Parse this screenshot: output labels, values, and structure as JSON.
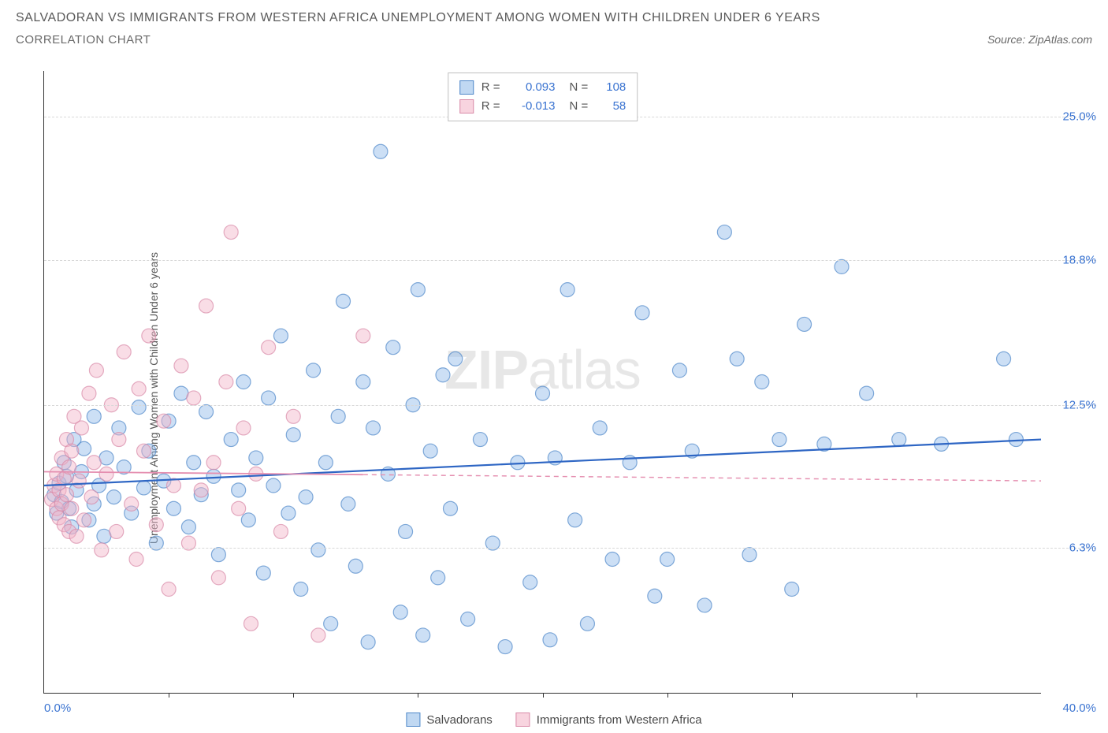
{
  "title": "SALVADORAN VS IMMIGRANTS FROM WESTERN AFRICA UNEMPLOYMENT AMONG WOMEN WITH CHILDREN UNDER 6 YEARS",
  "subtitle": "CORRELATION CHART",
  "source": "Source: ZipAtlas.com",
  "y_axis_label": "Unemployment Among Women with Children Under 6 years",
  "watermark_bold": "ZIP",
  "watermark_light": "atlas",
  "chart": {
    "type": "scatter",
    "xlim": [
      0,
      40
    ],
    "ylim": [
      0,
      27
    ],
    "x_min_label": "0.0%",
    "x_max_label": "40.0%",
    "x_tick_positions": [
      5,
      10,
      15,
      20,
      25,
      30,
      35
    ],
    "y_gridlines": [
      {
        "value": 6.3,
        "label": "6.3%"
      },
      {
        "value": 12.5,
        "label": "12.5%"
      },
      {
        "value": 18.8,
        "label": "18.8%"
      },
      {
        "value": 25.0,
        "label": "25.0%"
      }
    ],
    "background_color": "#ffffff",
    "grid_color": "#d8d8d8",
    "axis_color": "#333333",
    "tick_label_color": "#3b74d1",
    "marker_radius": 9,
    "marker_opacity": 0.45,
    "series": [
      {
        "key": "salvadorans",
        "label": "Salvadorans",
        "color_fill": "#8fb9e8",
        "color_stroke": "#4f88c9",
        "R": "0.093",
        "N": "108",
        "trend": {
          "y_at_xmin": 9.0,
          "y_at_xmax": 11.0,
          "color": "#2e66c4",
          "dash": "none",
          "width": 2.2
        },
        "points": [
          [
            0.4,
            8.6
          ],
          [
            0.5,
            7.8
          ],
          [
            0.6,
            9.1
          ],
          [
            0.7,
            8.3
          ],
          [
            0.8,
            10.0
          ],
          [
            0.9,
            9.4
          ],
          [
            1.0,
            8.0
          ],
          [
            1.1,
            7.2
          ],
          [
            1.2,
            11.0
          ],
          [
            1.3,
            8.8
          ],
          [
            1.5,
            9.6
          ],
          [
            1.6,
            10.6
          ],
          [
            1.8,
            7.5
          ],
          [
            2.0,
            8.2
          ],
          [
            2.0,
            12.0
          ],
          [
            2.2,
            9.0
          ],
          [
            2.4,
            6.8
          ],
          [
            2.5,
            10.2
          ],
          [
            2.8,
            8.5
          ],
          [
            3.0,
            11.5
          ],
          [
            3.2,
            9.8
          ],
          [
            3.5,
            7.8
          ],
          [
            3.8,
            12.4
          ],
          [
            4.0,
            8.9
          ],
          [
            4.2,
            10.5
          ],
          [
            4.5,
            6.5
          ],
          [
            4.8,
            9.2
          ],
          [
            5.0,
            11.8
          ],
          [
            5.2,
            8.0
          ],
          [
            5.5,
            13.0
          ],
          [
            5.8,
            7.2
          ],
          [
            6.0,
            10.0
          ],
          [
            6.3,
            8.6
          ],
          [
            6.5,
            12.2
          ],
          [
            6.8,
            9.4
          ],
          [
            7.0,
            6.0
          ],
          [
            7.5,
            11.0
          ],
          [
            7.8,
            8.8
          ],
          [
            8.0,
            13.5
          ],
          [
            8.2,
            7.5
          ],
          [
            8.5,
            10.2
          ],
          [
            8.8,
            5.2
          ],
          [
            9.0,
            12.8
          ],
          [
            9.2,
            9.0
          ],
          [
            9.5,
            15.5
          ],
          [
            9.8,
            7.8
          ],
          [
            10.0,
            11.2
          ],
          [
            10.3,
            4.5
          ],
          [
            10.5,
            8.5
          ],
          [
            10.8,
            14.0
          ],
          [
            11.0,
            6.2
          ],
          [
            11.3,
            10.0
          ],
          [
            11.5,
            3.0
          ],
          [
            11.8,
            12.0
          ],
          [
            12.0,
            17.0
          ],
          [
            12.2,
            8.2
          ],
          [
            12.5,
            5.5
          ],
          [
            12.8,
            13.5
          ],
          [
            13.0,
            2.2
          ],
          [
            13.2,
            11.5
          ],
          [
            13.5,
            23.5
          ],
          [
            13.8,
            9.5
          ],
          [
            14.0,
            15.0
          ],
          [
            14.3,
            3.5
          ],
          [
            14.5,
            7.0
          ],
          [
            14.8,
            12.5
          ],
          [
            15.0,
            17.5
          ],
          [
            15.2,
            2.5
          ],
          [
            15.5,
            10.5
          ],
          [
            15.8,
            5.0
          ],
          [
            16.0,
            13.8
          ],
          [
            16.3,
            8.0
          ],
          [
            16.5,
            14.5
          ],
          [
            17.0,
            3.2
          ],
          [
            17.5,
            11.0
          ],
          [
            18.0,
            6.5
          ],
          [
            18.5,
            2.0
          ],
          [
            19.0,
            10.0
          ],
          [
            19.5,
            4.8
          ],
          [
            20.0,
            13.0
          ],
          [
            20.3,
            2.3
          ],
          [
            20.5,
            10.2
          ],
          [
            21.0,
            17.5
          ],
          [
            21.3,
            7.5
          ],
          [
            21.8,
            3.0
          ],
          [
            22.3,
            11.5
          ],
          [
            22.8,
            5.8
          ],
          [
            23.5,
            10.0
          ],
          [
            24.0,
            16.5
          ],
          [
            24.5,
            4.2
          ],
          [
            25.0,
            5.8
          ],
          [
            25.5,
            14.0
          ],
          [
            26.0,
            10.5
          ],
          [
            26.5,
            3.8
          ],
          [
            27.3,
            20.0
          ],
          [
            27.8,
            14.5
          ],
          [
            28.3,
            6.0
          ],
          [
            28.8,
            13.5
          ],
          [
            29.5,
            11.0
          ],
          [
            30.0,
            4.5
          ],
          [
            30.5,
            16.0
          ],
          [
            31.3,
            10.8
          ],
          [
            32.0,
            18.5
          ],
          [
            33.0,
            13.0
          ],
          [
            34.3,
            11.0
          ],
          [
            36.0,
            10.8
          ],
          [
            38.5,
            14.5
          ],
          [
            39.0,
            11.0
          ]
        ]
      },
      {
        "key": "western_africa",
        "label": "Immigrants from Western Africa",
        "color_fill": "#f2b4c7",
        "color_stroke": "#d98aa8",
        "R": "-0.013",
        "N": "58",
        "trend": {
          "y_at_xmin": 9.6,
          "y_at_xmax": 9.2,
          "color": "#e58fb0",
          "dash": "solid_then_dash",
          "width": 1.8
        },
        "points": [
          [
            0.3,
            8.4
          ],
          [
            0.4,
            9.0
          ],
          [
            0.5,
            8.0
          ],
          [
            0.5,
            9.5
          ],
          [
            0.6,
            7.6
          ],
          [
            0.6,
            8.8
          ],
          [
            0.7,
            10.2
          ],
          [
            0.7,
            8.2
          ],
          [
            0.8,
            9.3
          ],
          [
            0.8,
            7.3
          ],
          [
            0.9,
            11.0
          ],
          [
            0.9,
            8.6
          ],
          [
            1.0,
            9.8
          ],
          [
            1.0,
            7.0
          ],
          [
            1.1,
            10.5
          ],
          [
            1.1,
            8.0
          ],
          [
            1.2,
            12.0
          ],
          [
            1.3,
            6.8
          ],
          [
            1.4,
            9.2
          ],
          [
            1.5,
            11.5
          ],
          [
            1.6,
            7.5
          ],
          [
            1.8,
            13.0
          ],
          [
            1.9,
            8.5
          ],
          [
            2.0,
            10.0
          ],
          [
            2.1,
            14.0
          ],
          [
            2.3,
            6.2
          ],
          [
            2.5,
            9.5
          ],
          [
            2.7,
            12.5
          ],
          [
            2.9,
            7.0
          ],
          [
            3.0,
            11.0
          ],
          [
            3.2,
            14.8
          ],
          [
            3.5,
            8.2
          ],
          [
            3.7,
            5.8
          ],
          [
            3.8,
            13.2
          ],
          [
            4.0,
            10.5
          ],
          [
            4.2,
            15.5
          ],
          [
            4.5,
            7.3
          ],
          [
            4.8,
            11.8
          ],
          [
            5.0,
            4.5
          ],
          [
            5.2,
            9.0
          ],
          [
            5.5,
            14.2
          ],
          [
            5.8,
            6.5
          ],
          [
            6.0,
            12.8
          ],
          [
            6.3,
            8.8
          ],
          [
            6.5,
            16.8
          ],
          [
            6.8,
            10.0
          ],
          [
            7.0,
            5.0
          ],
          [
            7.3,
            13.5
          ],
          [
            7.5,
            20.0
          ],
          [
            7.8,
            8.0
          ],
          [
            8.0,
            11.5
          ],
          [
            8.3,
            3.0
          ],
          [
            8.5,
            9.5
          ],
          [
            9.0,
            15.0
          ],
          [
            9.5,
            7.0
          ],
          [
            10.0,
            12.0
          ],
          [
            11.0,
            2.5
          ],
          [
            12.8,
            15.5
          ]
        ]
      }
    ],
    "legend_bottom": [
      {
        "swatch": "blue",
        "label": "Salvadorans"
      },
      {
        "swatch": "pink",
        "label": "Immigrants from Western Africa"
      }
    ]
  }
}
